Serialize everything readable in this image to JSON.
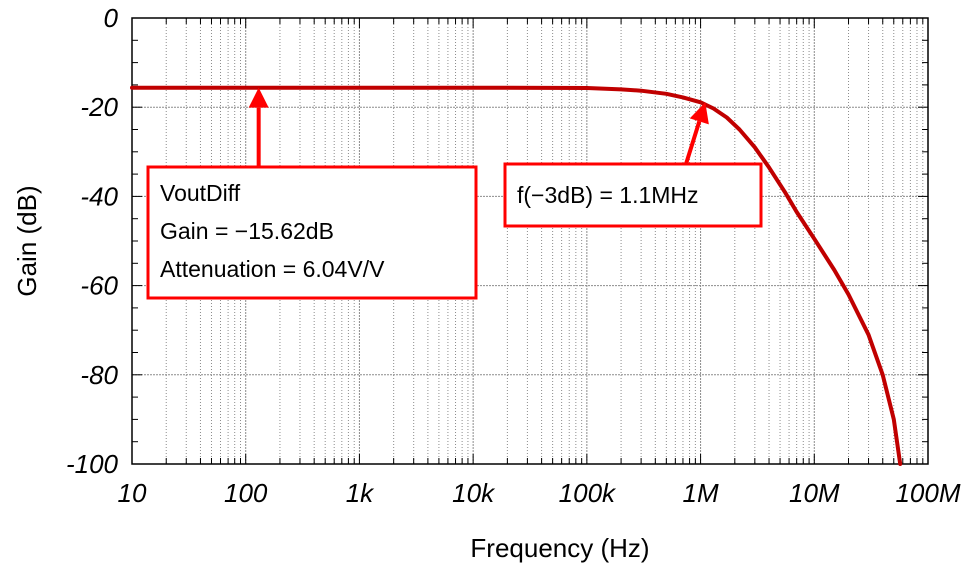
{
  "chart_data": {
    "type": "line",
    "xlabel": "Frequency (Hz)",
    "ylabel": "Gain (dB)",
    "xscale": "log",
    "xlim": [
      10,
      100000000
    ],
    "ylim": [
      -100,
      0
    ],
    "grid": true,
    "x_ticks": [
      {
        "value": 10,
        "label": "10"
      },
      {
        "value": 100,
        "label": "100"
      },
      {
        "value": 1000,
        "label": "1k"
      },
      {
        "value": 10000,
        "label": "10k"
      },
      {
        "value": 100000,
        "label": "100k"
      },
      {
        "value": 1000000,
        "label": "1M"
      },
      {
        "value": 10000000,
        "label": "10M"
      },
      {
        "value": 100000000,
        "label": "100M"
      }
    ],
    "y_ticks": [
      {
        "value": 0,
        "label": "0"
      },
      {
        "value": -20,
        "label": "-20"
      },
      {
        "value": -40,
        "label": "-40"
      },
      {
        "value": -60,
        "label": "-60"
      },
      {
        "value": -80,
        "label": "-80"
      },
      {
        "value": -100,
        "label": "-100"
      }
    ],
    "series": [
      {
        "color": "#c00000",
        "x": [
          10,
          100,
          1000,
          10000,
          100000,
          200000,
          300000,
          500000,
          700000,
          1000000,
          1300000,
          1700000,
          2200000,
          3000000,
          4000000,
          5500000,
          7000000,
          10000000,
          15000000,
          20000000,
          30000000,
          40000000,
          50000000,
          57000000
        ],
        "y": [
          -15.62,
          -15.62,
          -15.62,
          -15.62,
          -15.7,
          -16.0,
          -16.3,
          -17.0,
          -17.8,
          -18.9,
          -20.3,
          -22.3,
          -25.0,
          -29.0,
          -33.5,
          -39.0,
          -43.5,
          -49.5,
          -56.5,
          -62.0,
          -71.0,
          -80.0,
          -90.0,
          -100.0
        ]
      }
    ],
    "annotations": [
      {
        "lines": [
          "VoutDiff",
          "Gain = −15.62dB",
          "Attenuation = 6.04V/V"
        ],
        "target": {
          "x": 130,
          "y": -15.62
        }
      },
      {
        "lines": [
          "f(−3dB) = 1.1MHz"
        ],
        "target": {
          "x": 1100000,
          "y": -18.9
        }
      }
    ]
  }
}
